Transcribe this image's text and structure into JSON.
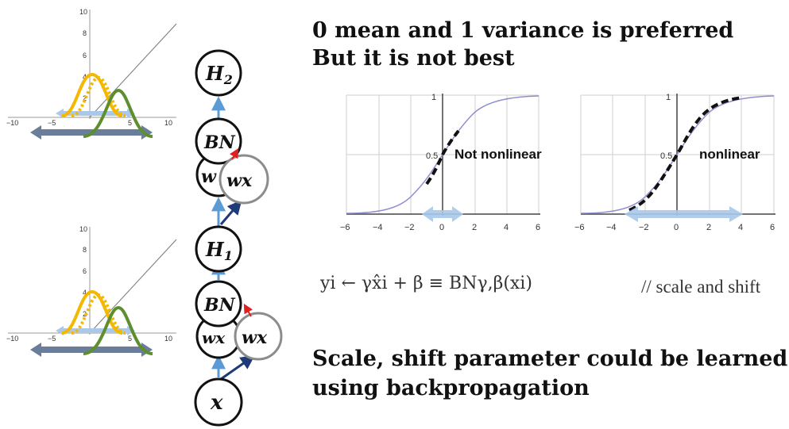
{
  "headings": {
    "line1": "0 mean and 1 variance is preferred",
    "line2": "But it is not best",
    "line3": "Scale, shift parameter could be learned",
    "line4": "using backpropagation"
  },
  "network": {
    "nodes": {
      "h2": {
        "base": "H",
        "sub": "2"
      },
      "bn_top": "BN",
      "w_top_behind": "w",
      "wx_top": "wx",
      "h1": {
        "base": "H",
        "sub": "1"
      },
      "bn_bottom": "BN",
      "wx_bottom_behind": "wx",
      "wx_bottom": "wx",
      "x": "x"
    }
  },
  "mini_plots": {
    "x_ticks": [
      "−10",
      "−5",
      "5",
      "10"
    ],
    "y_ticks": [
      "10",
      "8",
      "6",
      "4",
      "2"
    ]
  },
  "sigmoid_plots": {
    "x_ticks": [
      "−6",
      "−4",
      "−2",
      "0",
      "2",
      "4",
      "6"
    ],
    "y_ticks": [
      "1",
      "0.5"
    ],
    "left_label": "Not nonlinear",
    "right_label": "nonlinear"
  },
  "formula": {
    "lhs": "yi ← γx̂i + β ≡ BNγ,β(xi)",
    "comment": "// scale and shift"
  },
  "colors": {
    "node_stroke": "#111111",
    "wx_stroke": "#8c8c8c",
    "arrow_blue": "#5b9bd5",
    "arrow_navy": "#1f3a78",
    "arrow_red": "#e02020",
    "gauss_yellow": "#f5b800",
    "gauss_green": "#5e8f2e",
    "range_light": "#a9c8ea",
    "range_dark": "#6a7d9a",
    "sigmoid_line": "#8f8fd0"
  }
}
